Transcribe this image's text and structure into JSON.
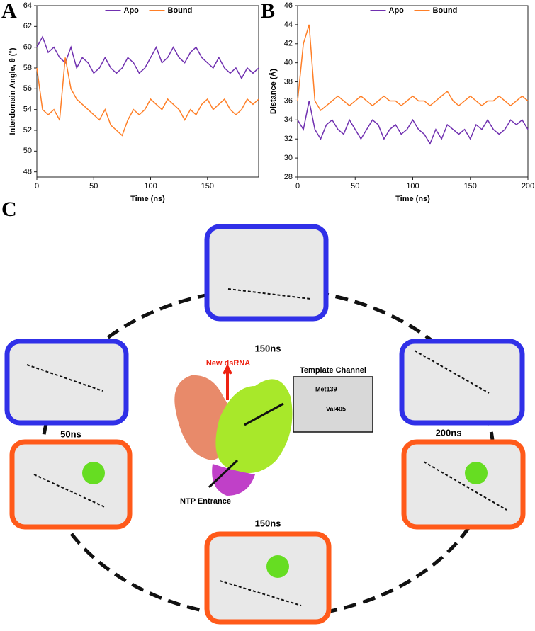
{
  "chart_data": [
    {
      "type": "line",
      "label": "A",
      "xlabel": "Time (ns)",
      "ylabel": "Interdomain Angle, θ (°)",
      "legend": "top",
      "xlim": [
        0,
        195
      ],
      "xticks": [
        0,
        50,
        100,
        150
      ],
      "ylim": [
        47.5,
        64
      ],
      "yticks": [
        48,
        50,
        52,
        54,
        56,
        58,
        60,
        62,
        64
      ],
      "x": [
        0,
        5,
        10,
        15,
        20,
        25,
        30,
        35,
        40,
        45,
        50,
        55,
        60,
        65,
        70,
        75,
        80,
        85,
        90,
        95,
        100,
        105,
        110,
        115,
        120,
        125,
        130,
        135,
        140,
        145,
        150,
        155,
        160,
        165,
        170,
        175,
        180,
        185,
        190,
        195
      ],
      "series": [
        {
          "name": "Apo",
          "color": "#7030b0",
          "values": [
            60,
            61,
            59.5,
            60,
            59,
            58.5,
            60,
            58,
            59,
            58.5,
            57.5,
            58,
            59,
            58,
            57.5,
            58,
            59,
            58.5,
            57.5,
            58,
            59,
            60,
            58.5,
            59,
            60,
            59,
            58.5,
            59.5,
            60,
            59,
            58.5,
            58,
            59,
            58,
            57.5,
            58,
            57,
            58,
            57.5,
            58
          ]
        },
        {
          "name": "Bound",
          "color": "#ff7f27",
          "values": [
            58,
            54,
            53.5,
            54,
            53,
            59,
            56,
            55,
            54.5,
            54,
            53.5,
            53,
            54,
            52.5,
            52,
            51.5,
            53,
            54,
            53.5,
            54,
            55,
            54.5,
            54,
            55,
            54.5,
            54,
            53,
            54,
            53.5,
            54.5,
            55,
            54,
            54.5,
            55,
            54,
            53.5,
            54,
            55,
            54.5,
            55
          ]
        }
      ]
    },
    {
      "type": "line",
      "label": "B",
      "xlabel": "Time (ns)",
      "ylabel": "Distance (Å)",
      "legend": "top",
      "xlim": [
        0,
        200
      ],
      "xticks": [
        0,
        50,
        100,
        150,
        200
      ],
      "ylim": [
        28,
        46
      ],
      "yticks": [
        28,
        30,
        32,
        34,
        36,
        38,
        40,
        42,
        44,
        46
      ],
      "x": [
        0,
        5,
        10,
        15,
        20,
        25,
        30,
        35,
        40,
        45,
        50,
        55,
        60,
        65,
        70,
        75,
        80,
        85,
        90,
        95,
        100,
        105,
        110,
        115,
        120,
        125,
        130,
        135,
        140,
        145,
        150,
        155,
        160,
        165,
        170,
        175,
        180,
        185,
        190,
        195,
        200
      ],
      "series": [
        {
          "name": "Apo",
          "color": "#7030b0",
          "values": [
            34,
            33,
            36,
            33,
            32,
            33.5,
            34,
            33,
            32.5,
            34,
            33,
            32,
            33,
            34,
            33.5,
            32,
            33,
            33.5,
            32.5,
            33,
            34,
            33,
            32.5,
            31.5,
            33,
            32,
            33.5,
            33,
            32.5,
            33,
            32,
            33.5,
            33,
            34,
            33,
            32.5,
            33,
            34,
            33.5,
            34,
            33
          ]
        },
        {
          "name": "Bound",
          "color": "#ff7f27",
          "values": [
            36,
            42,
            44,
            36,
            35,
            35.5,
            36,
            36.5,
            36,
            35.5,
            36,
            36.5,
            36,
            35.5,
            36,
            36.5,
            36,
            36,
            35.5,
            36,
            36.5,
            36,
            36,
            35.5,
            36,
            36.5,
            37,
            36,
            35.5,
            36,
            36.5,
            36,
            35.5,
            36,
            36,
            36.5,
            36,
            35.5,
            36,
            36.5,
            36
          ]
        }
      ]
    }
  ],
  "diagram": {
    "label": "C",
    "top_time": "150ns",
    "left_time": "50ns",
    "right_time": "200ns",
    "bottom_time": "150ns",
    "new_dsrna": "New dsRNA",
    "template_channel": "Template Channel",
    "residue_1": "Met139",
    "residue_2": "Val405",
    "ntp_entrance": "NTP Entrance"
  }
}
